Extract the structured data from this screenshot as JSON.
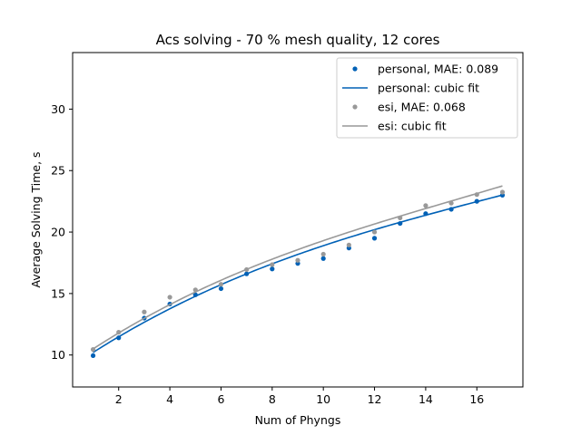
{
  "chart_data": {
    "type": "line",
    "title": "Acs solving - 70 % mesh quality, 12 cores",
    "xlabel": "Num of Phyngs",
    "ylabel": "Average Solving Time, s",
    "xlim": [
      0.2,
      17.8
    ],
    "ylim": [
      7.4,
      34.6
    ],
    "xticks": [
      2,
      4,
      6,
      8,
      10,
      12,
      14,
      16
    ],
    "yticks": [
      10,
      15,
      20,
      25,
      30
    ],
    "grid": false,
    "legend_position": "top-right",
    "series": [
      {
        "name": "personal, MAE: 0.089",
        "kind": "points",
        "color": "#0061b6",
        "x": [
          1,
          2,
          3,
          4,
          5,
          6,
          7,
          8,
          9,
          10,
          11,
          12,
          13,
          14,
          15,
          16,
          17
        ],
        "y": [
          9.95,
          11.4,
          13.0,
          14.15,
          14.9,
          15.4,
          16.6,
          17.0,
          17.45,
          17.85,
          18.7,
          19.5,
          20.7,
          21.5,
          21.85,
          22.5,
          23.0
        ]
      },
      {
        "name": "personal: cubic fit",
        "kind": "line",
        "color": "#0061b6",
        "coefficients": [
          0.001,
          -0.0515,
          1.42,
          8.84
        ]
      },
      {
        "name": "esi, MAE: 0.068",
        "kind": "points",
        "color": "#999999",
        "x": [
          1,
          2,
          3,
          4,
          5,
          6,
          7,
          8,
          9,
          10,
          11,
          12,
          13,
          14,
          15,
          16,
          17
        ],
        "y": [
          10.45,
          11.85,
          13.5,
          14.7,
          15.3,
          15.75,
          16.95,
          17.35,
          17.7,
          18.2,
          18.95,
          20.0,
          21.15,
          22.15,
          22.35,
          23.05,
          23.25
        ]
      },
      {
        "name": "esi: cubic fit",
        "kind": "line",
        "color": "#999999",
        "coefficients": [
          0.0012,
          -0.055,
          1.45,
          9.1
        ]
      }
    ]
  }
}
